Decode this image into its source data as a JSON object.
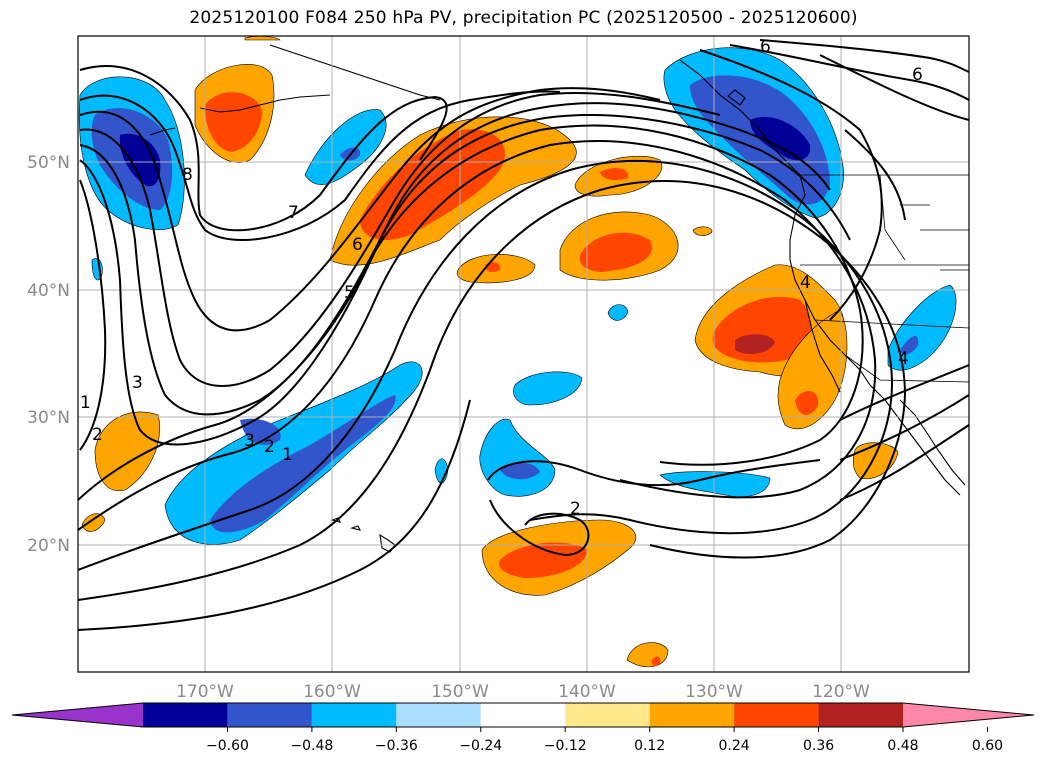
{
  "title": "2025120100 F084 250 hPa PV, precipitation PC (2025120500 - 2025120600)",
  "map": {
    "lon_labels": [
      "170°W",
      "160°W",
      "150°W",
      "140°W",
      "130°W",
      "120°W"
    ],
    "lat_labels": [
      "50°N",
      "40°N",
      "30°N",
      "20°N"
    ]
  },
  "contour_labels": [
    "6",
    "6",
    "8",
    "7",
    "6",
    "5",
    "4",
    "3",
    "1",
    "2",
    "3",
    "2",
    "1",
    "2",
    "4"
  ],
  "colorbar": {
    "ticks": [
      "−0.60",
      "−0.48",
      "−0.36",
      "−0.24",
      "−0.12",
      "0.12",
      "0.24",
      "0.36",
      "0.48",
      "0.60"
    ],
    "colors": [
      "#9933cc",
      "#000099",
      "#3355cc",
      "#00bbff",
      "#aaddff",
      "#ffffff",
      "#ffe88a",
      "#ffa500",
      "#ff4500",
      "#b22222",
      "#ff88aa"
    ]
  }
}
